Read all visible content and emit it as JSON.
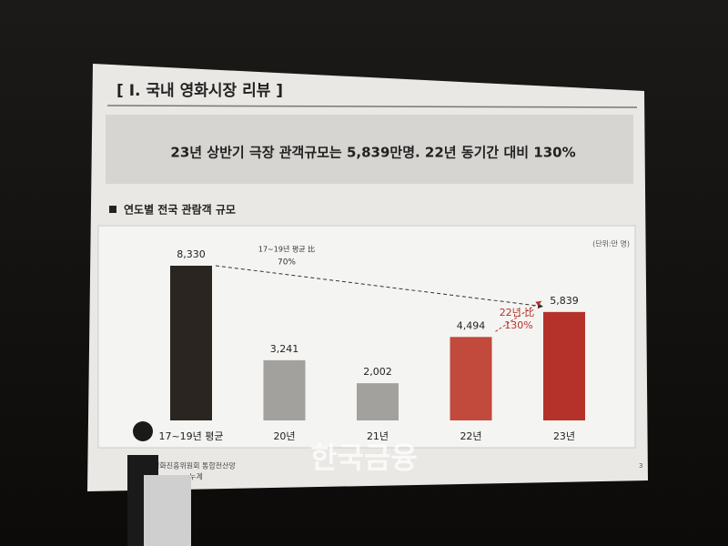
{
  "slide": {
    "section": "[ I. 국내 영화시장 리뷰 ]",
    "headline": "23년 상반기 극장 관객규모는 5,839만명. 22년 동기간 대비 130%",
    "source": "영화진흥위원회 통합전산망",
    "source_note": "누계",
    "page": "3",
    "watermark": "한국금융"
  },
  "chart_data": {
    "type": "bar",
    "title": "연도별 전국 관람객 규모",
    "unit": "(단위:만 명)",
    "categories": [
      "17~19년 평균",
      "20년",
      "21년",
      "22년",
      "23년"
    ],
    "values": [
      8330,
      3241,
      2002,
      4494,
      5839
    ],
    "value_labels": [
      "8,330",
      "3,241",
      "2,002",
      "4,494",
      "5,839"
    ],
    "colors": [
      "#2b2521",
      "#a3a19e",
      "#a3a19e",
      "#c24a3c",
      "#b5322a"
    ],
    "annotations": [
      "17~19년 평균 比",
      "70%",
      "22년 比",
      "130%"
    ]
  }
}
